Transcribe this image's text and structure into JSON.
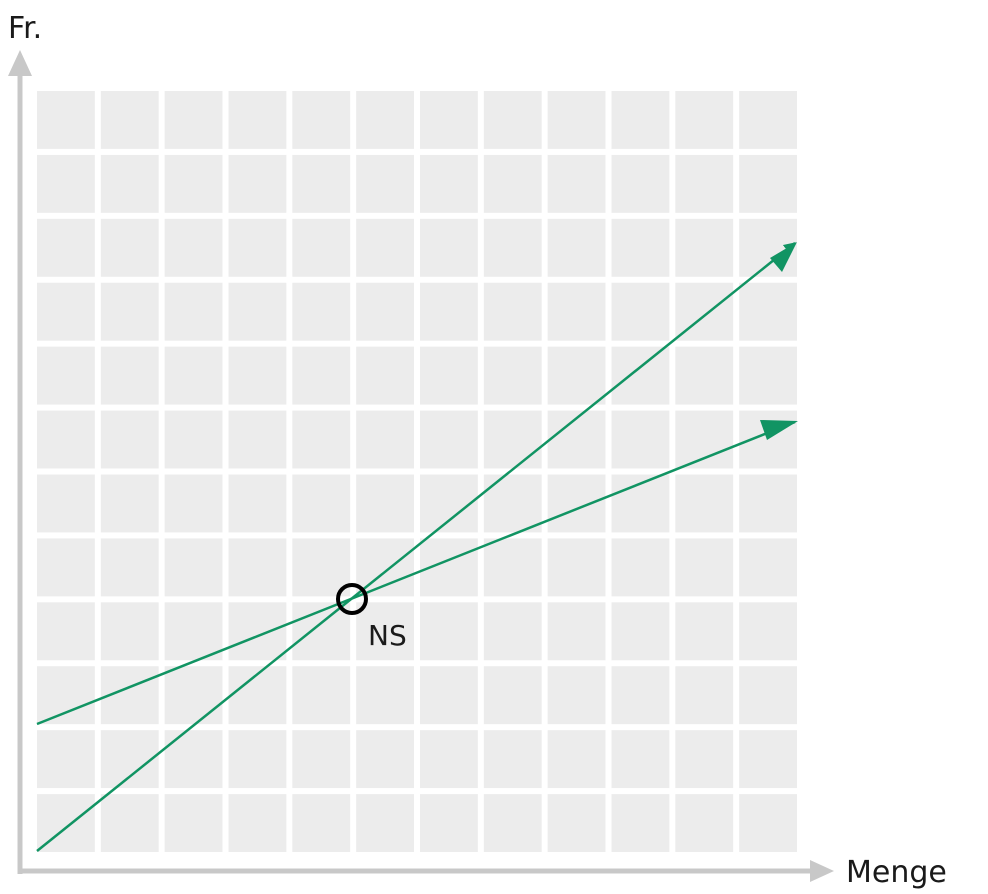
{
  "diagram": {
    "y_axis_label": "Fr.",
    "x_axis_label": "Menge",
    "point_label": "NS",
    "grid_cells": {
      "columns": 12,
      "rows": 12
    },
    "colors": {
      "grid_fill": "#ececec",
      "grid_gap": "#ffffff",
      "axis": "#c8c8c8",
      "line": "#119463",
      "point_ring": "#000000"
    }
  }
}
